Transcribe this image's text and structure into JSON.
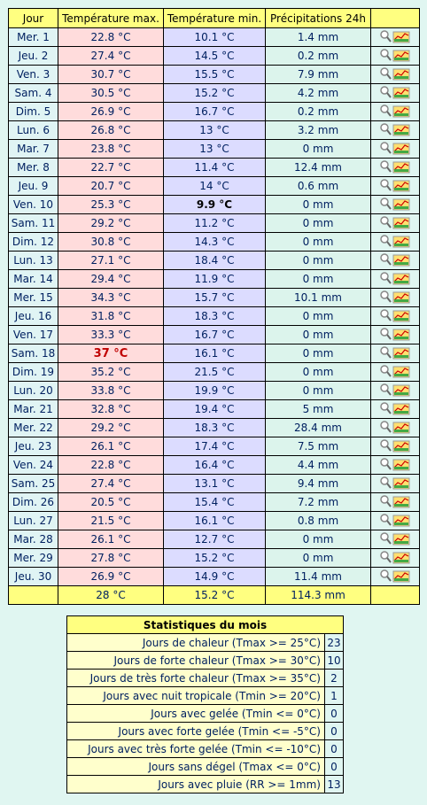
{
  "daily": {
    "header": [
      "Jour",
      "Température max.",
      "Température min.",
      "Précipitations 24h"
    ],
    "rows": [
      [
        "Mer. 1",
        "22.8 °C",
        "10.1 °C",
        "1.4 mm"
      ],
      [
        "Jeu. 2",
        "27.4 °C",
        "14.5 °C",
        "0.2 mm"
      ],
      [
        "Ven. 3",
        "30.7 °C",
        "15.5 °C",
        "7.9 mm"
      ],
      [
        "Sam. 4",
        "30.5 °C",
        "15.2 °C",
        "4.2 mm"
      ],
      [
        "Dim. 5",
        "26.9 °C",
        "16.7 °C",
        "0.2 mm"
      ],
      [
        "Lun. 6",
        "26.8 °C",
        "13 °C",
        "3.2 mm"
      ],
      [
        "Mar. 7",
        "23.8 °C",
        "13 °C",
        "0 mm"
      ],
      [
        "Mer. 8",
        "22.7 °C",
        "11.4 °C",
        "12.4 mm"
      ],
      [
        "Jeu. 9",
        "20.7 °C",
        "14 °C",
        "0.6 mm"
      ],
      [
        "Ven. 10",
        "25.3 °C",
        {
          "text": "9.9 °C",
          "style": "cold"
        },
        "0 mm"
      ],
      [
        "Sam. 11",
        "29.2 °C",
        "11.2 °C",
        "0 mm"
      ],
      [
        "Dim. 12",
        "30.8 °C",
        "14.3 °C",
        "0 mm"
      ],
      [
        "Lun. 13",
        "27.1 °C",
        "18.4 °C",
        "0 mm"
      ],
      [
        "Mar. 14",
        "29.4 °C",
        "11.9 °C",
        "0 mm"
      ],
      [
        "Mer. 15",
        "34.3 °C",
        "15.7 °C",
        "10.1 mm"
      ],
      [
        "Jeu. 16",
        "31.8 °C",
        "18.3 °C",
        "0 mm"
      ],
      [
        "Ven. 17",
        "33.3 °C",
        "16.7 °C",
        "0 mm"
      ],
      [
        "Sam. 18",
        {
          "text": "37 °C",
          "style": "hot"
        },
        "16.1 °C",
        "0 mm"
      ],
      [
        "Dim. 19",
        "35.2 °C",
        "21.5 °C",
        "0 mm"
      ],
      [
        "Lun. 20",
        "33.8 °C",
        "19.9 °C",
        "0 mm"
      ],
      [
        "Mar. 21",
        "32.8 °C",
        "19.4 °C",
        "5 mm"
      ],
      [
        "Mer. 22",
        "29.2 °C",
        "18.3 °C",
        "28.4 mm"
      ],
      [
        "Jeu. 23",
        "26.1 °C",
        "17.4 °C",
        "7.5 mm"
      ],
      [
        "Ven. 24",
        "22.8 °C",
        "16.4 °C",
        "4.4 mm"
      ],
      [
        "Sam. 25",
        "27.4 °C",
        "13.1 °C",
        "9.4 mm"
      ],
      [
        "Dim. 26",
        "20.5 °C",
        "15.4 °C",
        "7.2 mm"
      ],
      [
        "Lun. 27",
        "21.5 °C",
        "16.1 °C",
        "0.8 mm"
      ],
      [
        "Mar. 28",
        "26.1 °C",
        "12.7 °C",
        "0 mm"
      ],
      [
        "Mer. 29",
        "27.8 °C",
        "15.2 °C",
        "0 mm"
      ],
      [
        "Jeu. 30",
        "26.9 °C",
        "14.9 °C",
        "11.4 mm"
      ]
    ],
    "totals": [
      "28 °C",
      "15.2 °C",
      "114.3 mm"
    ]
  },
  "stats": {
    "title": "Statistiques du mois",
    "rows": [
      [
        "Jours de chaleur (Tmax >= 25°C)",
        "23"
      ],
      [
        "Jours de forte chaleur (Tmax >= 30°C)",
        "10"
      ],
      [
        "Jours de très forte chaleur (Tmax >= 35°C)",
        "2"
      ],
      [
        "Jours avec nuit tropicale (Tmin >= 20°C)",
        "1"
      ],
      [
        "Jours avec gelée (Tmin <= 0°C)",
        "0"
      ],
      [
        "Jours avec forte gelée (Tmin <= -5°C)",
        "0"
      ],
      [
        "Jours avec très forte gelée (Tmin <= -10°C)",
        "0"
      ],
      [
        "Jours sans dégel (Tmax <= 0°C)",
        "0"
      ],
      [
        "Jours avec pluie (RR >= 1mm)",
        "13"
      ]
    ]
  }
}
